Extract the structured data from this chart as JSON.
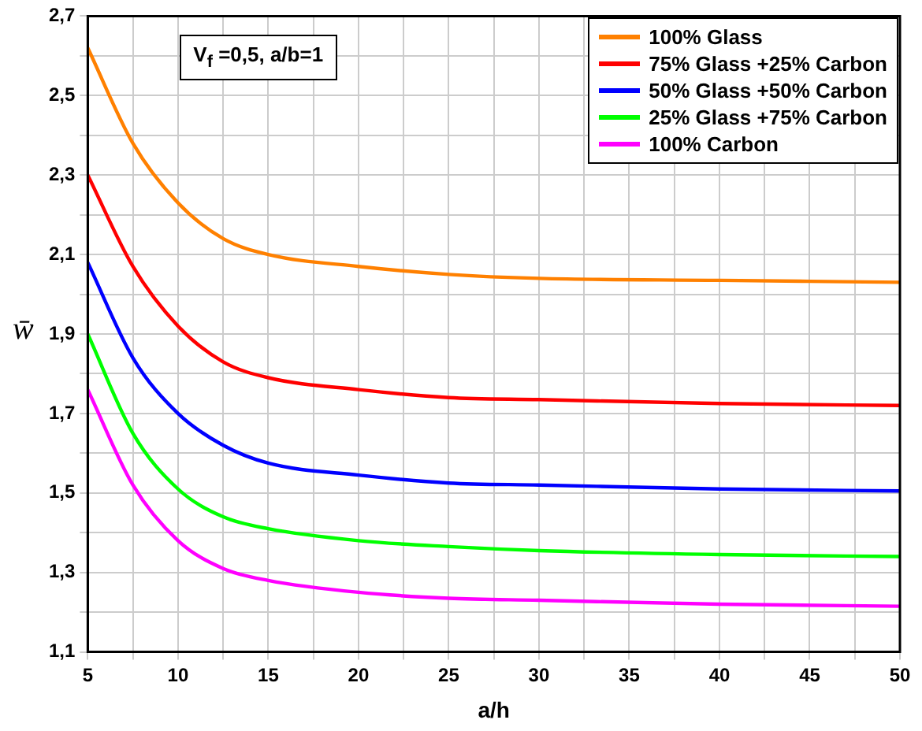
{
  "chart_data": {
    "type": "line",
    "xlabel": "a/h",
    "ylabel": "w̄",
    "annotations": [
      "V$_{f}$ =0,5, a/b=1"
    ],
    "x": [
      5,
      7.5,
      10,
      12.5,
      15,
      20,
      25,
      30,
      40,
      50
    ],
    "series": [
      {
        "name": "100% Glass",
        "color": "#ff8000",
        "values": [
          2.62,
          2.38,
          2.23,
          2.14,
          2.1,
          2.07,
          2.05,
          2.04,
          2.035,
          2.03
        ]
      },
      {
        "name": "75% Glass +25% Carbon",
        "color": "#ff0000",
        "values": [
          2.3,
          2.07,
          1.92,
          1.83,
          1.79,
          1.76,
          1.74,
          1.735,
          1.725,
          1.72
        ]
      },
      {
        "name": "50% Glass +50% Carbon",
        "color": "#0000ff",
        "values": [
          2.08,
          1.84,
          1.7,
          1.62,
          1.575,
          1.545,
          1.525,
          1.52,
          1.51,
          1.505
        ]
      },
      {
        "name": "25% Glass +75% Carbon",
        "color": "#00ff00",
        "values": [
          1.9,
          1.65,
          1.51,
          1.44,
          1.41,
          1.38,
          1.365,
          1.355,
          1.345,
          1.34
        ]
      },
      {
        "name": "100% Carbon",
        "color": "#ff00ff",
        "values": [
          1.76,
          1.52,
          1.38,
          1.31,
          1.28,
          1.25,
          1.235,
          1.23,
          1.22,
          1.215
        ]
      }
    ],
    "xlim": [
      5,
      50
    ],
    "xticks": [
      5,
      {
        "value": 7.5,
        "label": null
      },
      10,
      {
        "value": 12.5,
        "label": null
      },
      15,
      {
        "value": 17.5,
        "label": null
      },
      20,
      {
        "value": 22.5,
        "label": null
      },
      25,
      {
        "value": 27.5,
        "label": null
      },
      30,
      {
        "value": 32.5,
        "label": null
      },
      35,
      {
        "value": 37.5,
        "label": null
      },
      40,
      {
        "value": 42.5,
        "label": null
      },
      45,
      {
        "value": 47.5,
        "label": null
      },
      50
    ],
    "ylim": [
      1.1,
      2.7
    ],
    "yticks": [
      {
        "value": 1.1,
        "label": "1,1"
      },
      {
        "value": 1.2,
        "label": null
      },
      {
        "value": 1.3,
        "label": "1,3"
      },
      {
        "value": 1.4,
        "label": null
      },
      {
        "value": 1.5,
        "label": "1,5"
      },
      {
        "value": 1.6,
        "label": null
      },
      {
        "value": 1.7,
        "label": "1,7"
      },
      {
        "value": 1.8,
        "label": null
      },
      {
        "value": 1.9,
        "label": "1,9"
      },
      {
        "value": 2.0,
        "label": null
      },
      {
        "value": 2.1,
        "label": "2,1"
      },
      {
        "value": 2.2,
        "label": null
      },
      {
        "value": 2.3,
        "label": "2,3"
      },
      {
        "value": 2.4,
        "label": null
      },
      {
        "value": 2.5,
        "label": "2,5"
      },
      {
        "value": 2.6,
        "label": null
      },
      {
        "value": 2.7,
        "label": "2,7"
      }
    ],
    "grid": true,
    "legend": "top right",
    "marker": "none",
    "line_style": "solid"
  }
}
